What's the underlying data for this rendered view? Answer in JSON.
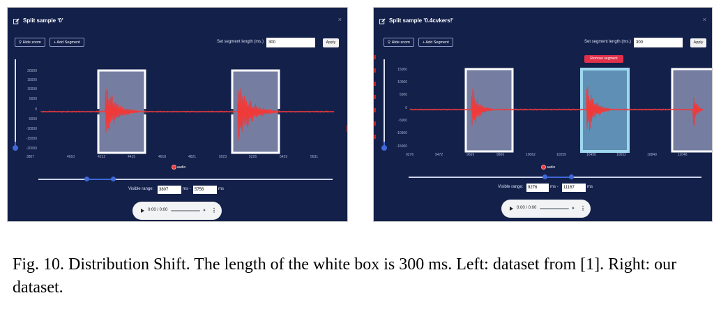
{
  "colors": {
    "panel_bg": "#13204a",
    "waveform": "#ef3a3a",
    "segment_box": "#ffffff",
    "segment_box_selected": "#9fd8ef",
    "slider_accent": "#3f68d8",
    "remove_button": "#e0304a",
    "caption_text": "#000000"
  },
  "left": {
    "title": "Split sample '0'",
    "close_icon": "×",
    "hide_zoom_label": "Hide zoom",
    "add_segment_label": "+ Add Segment",
    "segment_length_label": "Set segment length (ms.)",
    "segment_length_value": "300",
    "apply_label": "Apply",
    "y_ticks": [
      "20000",
      "15000",
      "10000",
      "5000",
      "0",
      "-5000",
      "-10000",
      "-15000",
      "-20000"
    ],
    "x_ticks": [
      "3807",
      "4010",
      "4212",
      "4415",
      "4618",
      "4821",
      "5023",
      "5226",
      "5429",
      "5631"
    ],
    "legend_label": "audio",
    "visible_range_label": "Visible range:",
    "visible_from": "3807",
    "visible_sep": "ms -",
    "visible_to": "5756",
    "visible_unit": "ms",
    "range_slider": {
      "min": 0,
      "max": 1,
      "low": 0.165,
      "high": 0.255
    },
    "player_time": "0:00 / 0:00"
  },
  "right": {
    "title": "Split sample '0.4cvkers!'",
    "close_icon": "×",
    "hide_zoom_label": "Hide zoom",
    "add_segment_label": "+ Add Segment",
    "segment_length_label": "Set segment length (ms.)",
    "segment_length_value": "300",
    "apply_label": "Apply",
    "remove_segment_label": "Remove segment",
    "y_ticks": [
      "15000",
      "10000",
      "5000",
      "0",
      "-5000",
      "-10000",
      "-15000"
    ],
    "x_ticks": [
      "9276",
      "9472",
      "9669",
      "9866",
      "10062",
      "10259",
      "10456",
      "10652",
      "10849",
      "11046"
    ],
    "legend_label": "audio",
    "visible_range_label": "Visible range:",
    "visible_from": "9276",
    "visible_sep": "ms -",
    "visible_to": "11167",
    "visible_unit": "ms",
    "range_slider": {
      "min": 0,
      "max": 1,
      "low": 0.465,
      "high": 0.555
    },
    "player_time": "0:00 / 0:00"
  },
  "caption": {
    "text": "Fig. 10.  Distribution Shift. The length of the white box is 300 ms. Left: dataset from [1]. Right: our dataset."
  }
}
